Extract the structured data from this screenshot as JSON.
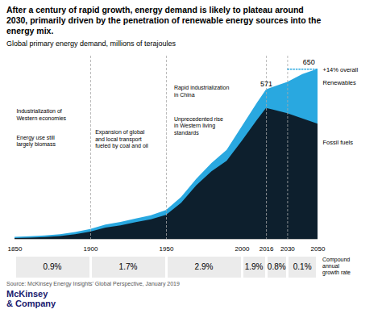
{
  "chart_data": {
    "type": "area",
    "title": "After a century of rapid growth, energy demand is likely to plateau around\n2030, primarily driven by the penetration of renewable energy sources into the\nenergy mix.",
    "subtitle": "Global primary energy demand, millions of terajoules",
    "x": [
      1850,
      1860,
      1870,
      1880,
      1890,
      1900,
      1910,
      1920,
      1930,
      1940,
      1950,
      1960,
      1970,
      1980,
      1990,
      2000,
      2010,
      2016,
      2020,
      2030,
      2040,
      2050
    ],
    "series": [
      {
        "name": "Renewables",
        "color": "#29a8e0",
        "values": [
          8,
          10,
          13,
          18,
          26,
          38,
          55,
          65,
          78,
          90,
          110,
          160,
          230,
          290,
          340,
          430,
          520,
          571,
          580,
          600,
          630,
          650
        ]
      },
      {
        "name": "Fossil fuels",
        "color": "#0d1f2d",
        "values": [
          3,
          5,
          7,
          11,
          18,
          28,
          43,
          52,
          64,
          75,
          92,
          138,
          205,
          258,
          298,
          375,
          455,
          500,
          495,
          480,
          460,
          440
        ]
      }
    ],
    "stacked": false,
    "xlim": [
      1850,
      2050
    ],
    "xticks": [
      1850,
      1900,
      1950,
      2000,
      2016,
      2030,
      2050
    ],
    "ylim": [
      0,
      700
    ],
    "tick_labels": "x",
    "grid": false,
    "vlines": [
      1900,
      1950,
      2016,
      2030
    ],
    "annotations": [
      "Industrialization of\nWestern economies",
      "Energy use still\nlargely biomass",
      "Expansion of global\nand local transport\nfueled by coal and oil",
      "Rapid industrialization\nin China",
      "Unprecedented rise\nin Western living\nstandards",
      "571",
      "650",
      "+14% overall"
    ],
    "growth_rates": {
      "label": "Compound\nannual\ngrowth rate",
      "periods": [
        1850,
        1900,
        1950,
        2000,
        2016,
        2030,
        2050
      ],
      "values": [
        0.9,
        1.7,
        2.9,
        1.9,
        0.8,
        0.1
      ],
      "value_labels": [
        "0.9%",
        "1.7%",
        "2.9%",
        "1.9%",
        "0.8%",
        "0.1%"
      ],
      "color": "#ebebeb"
    },
    "caption": "Source: McKinsey Energy Insights’ Global Perspective, January 2019",
    "logo": "McKinsey\n& Company"
  }
}
